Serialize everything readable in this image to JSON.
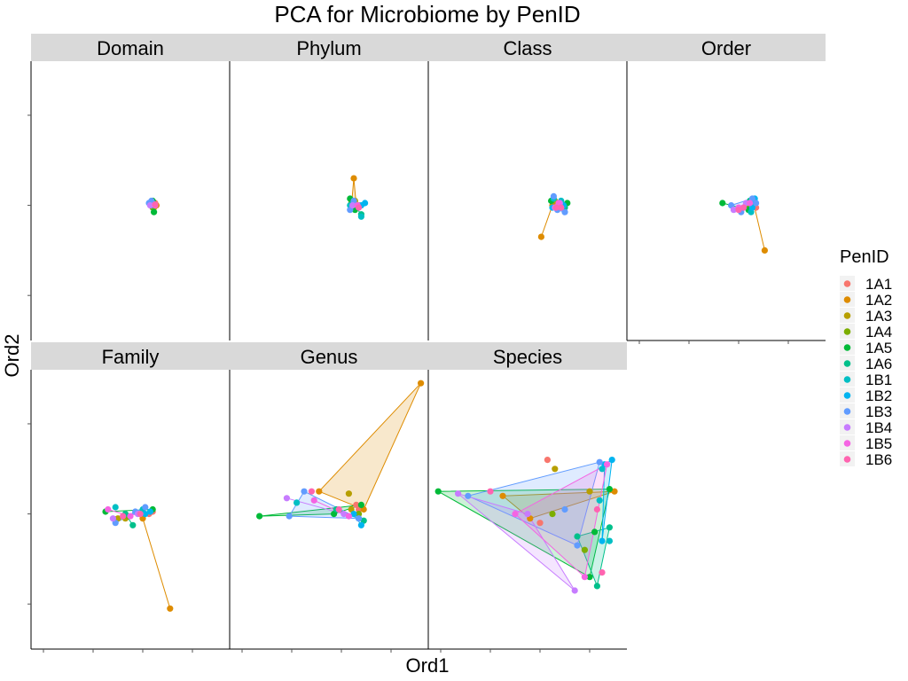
{
  "chart_data": {
    "type": "scatter",
    "title": "PCA for Microbiome by PenID",
    "xlabel": "Ord1",
    "ylabel": "Ord2",
    "legend": {
      "title": "PenID",
      "position": "right",
      "entries": [
        "1A1",
        "1A2",
        "1A3",
        "1A4",
        "1A5",
        "1A6",
        "1B1",
        "1B2",
        "1B3",
        "1B4",
        "1B5",
        "1B6"
      ]
    },
    "colors": {
      "1A1": "#F8766D",
      "1A2": "#DE8C00",
      "1A3": "#B79F00",
      "1A4": "#7CAE00",
      "1A5": "#00BA38",
      "1A6": "#00C08B",
      "1B1": "#00BFC4",
      "1B2": "#00B4F0",
      "1B3": "#619CFF",
      "1B4": "#C77CFF",
      "1B5": "#F564E3",
      "1B6": "#FF64B0"
    },
    "xlim": [
      0,
      8
    ],
    "ylim": [
      0,
      6.2
    ],
    "hulls_shown_for": [
      "1A2",
      "1A5",
      "1A6",
      "1B2",
      "1B3",
      "1B4",
      "1B5"
    ],
    "grid": false,
    "tick_labels_shown": false,
    "panels": [
      {
        "name": "Domain",
        "points": {
          "1A1": [
            [
              4.9,
              3.0
            ],
            [
              5.0,
              3.05
            ]
          ],
          "1A2": [
            [
              5.05,
              3.0
            ],
            [
              4.95,
              2.95
            ]
          ],
          "1A3": [
            [
              4.95,
              3.05
            ]
          ],
          "1A4": [
            [
              4.9,
              2.95
            ]
          ],
          "1A5": [
            [
              4.95,
              2.85
            ],
            [
              4.9,
              3.1
            ]
          ],
          "1A6": [
            [
              4.85,
              3.05
            ]
          ],
          "1B1": [
            [
              4.85,
              3.0
            ],
            [
              4.9,
              3.05
            ]
          ],
          "1B2": [
            [
              4.8,
              3.05
            ]
          ],
          "1B3": [
            [
              4.75,
              3.05
            ],
            [
              4.85,
              3.1
            ]
          ],
          "1B4": [
            [
              4.8,
              3.0
            ]
          ],
          "1B5": [
            [
              5.0,
              3.0
            ]
          ],
          "1B6": [
            [
              5.0,
              3.02
            ]
          ]
        }
      },
      {
        "name": "Phylum",
        "points": {
          "1A1": [
            [
              5.2,
              3.0
            ],
            [
              5.0,
              2.95
            ]
          ],
          "1A2": [
            [
              5.0,
              3.6
            ],
            [
              5.1,
              3.0
            ],
            [
              4.9,
              2.95
            ]
          ],
          "1A3": [
            [
              5.05,
              3.1
            ]
          ],
          "1A4": [
            [
              4.9,
              3.05
            ]
          ],
          "1A5": [
            [
              4.85,
              3.15
            ],
            [
              5.05,
              2.9
            ]
          ],
          "1A6": [
            [
              5.3,
              2.8
            ],
            [
              4.95,
              3.05
            ]
          ],
          "1B1": [
            [
              5.3,
              2.75
            ],
            [
              4.85,
              3.0
            ]
          ],
          "1B2": [
            [
              5.45,
              3.05
            ],
            [
              5.3,
              3.0
            ]
          ],
          "1B3": [
            [
              4.85,
              2.9
            ],
            [
              5.0,
              3.1
            ]
          ],
          "1B4": [
            [
              4.95,
              3.0
            ]
          ],
          "1B5": [
            [
              5.15,
              3.0
            ]
          ],
          "1B6": [
            [
              5.2,
              2.95
            ]
          ]
        }
      },
      {
        "name": "Class",
        "points": {
          "1A1": [
            [
              5.2,
              2.95
            ],
            [
              5.3,
              3.0
            ]
          ],
          "1A2": [
            [
              4.55,
              2.3
            ],
            [
              5.0,
              3.0
            ]
          ],
          "1A3": [
            [
              5.1,
              3.1
            ]
          ],
          "1A4": [
            [
              5.4,
              3.0
            ]
          ],
          "1A5": [
            [
              5.6,
              3.05
            ],
            [
              4.95,
              3.1
            ]
          ],
          "1A6": [
            [
              5.5,
              2.95
            ]
          ],
          "1B1": [
            [
              5.35,
              3.1
            ],
            [
              5.05,
              3.15
            ]
          ],
          "1B2": [
            [
              5.45,
              3.0
            ],
            [
              5.0,
              2.95
            ]
          ],
          "1B3": [
            [
              5.5,
              2.85
            ],
            [
              5.05,
              3.2
            ],
            [
              5.2,
              2.9
            ]
          ],
          "1B4": [
            [
              5.1,
              2.95
            ],
            [
              5.3,
              3.05
            ]
          ],
          "1B5": [
            [
              5.25,
              3.05
            ]
          ],
          "1B6": [
            [
              5.15,
              2.95
            ],
            [
              5.35,
              2.95
            ]
          ]
        }
      },
      {
        "name": "Order",
        "points": {
          "1A1": [
            [
              4.9,
              3.0
            ],
            [
              5.2,
              2.95
            ]
          ],
          "1A2": [
            [
              5.55,
              2.0
            ],
            [
              5.1,
              3.05
            ]
          ],
          "1A3": [
            [
              5.0,
              2.95
            ]
          ],
          "1A4": [
            [
              4.85,
              3.0
            ]
          ],
          "1A5": [
            [
              3.85,
              3.05
            ],
            [
              4.9,
              2.9
            ]
          ],
          "1A6": [
            [
              4.95,
              3.1
            ]
          ],
          "1B1": [
            [
              5.0,
              2.85
            ],
            [
              5.1,
              3.1
            ]
          ],
          "1B2": [
            [
              5.15,
              3.15
            ],
            [
              5.05,
              2.95
            ]
          ],
          "1B3": [
            [
              4.6,
              2.85
            ],
            [
              5.05,
              3.15
            ],
            [
              4.2,
              3.0
            ],
            [
              5.2,
              3.05
            ]
          ],
          "1B4": [
            [
              4.3,
              2.9
            ],
            [
              4.8,
              3.05
            ]
          ],
          "1B5": [
            [
              4.5,
              2.95
            ],
            [
              4.95,
              3.05
            ]
          ],
          "1B6": [
            [
              4.7,
              2.95
            ],
            [
              4.5,
              2.9
            ]
          ]
        }
      },
      {
        "name": "Family",
        "points": {
          "1A1": [
            [
              4.75,
              3.0
            ],
            [
              4.9,
              3.05
            ]
          ],
          "1A2": [
            [
              5.6,
              0.9
            ],
            [
              4.5,
              2.9
            ]
          ],
          "1A3": [
            [
              3.5,
              2.9
            ],
            [
              3.8,
              2.9
            ]
          ],
          "1A4": [
            [
              3.9,
              2.95
            ]
          ],
          "1A5": [
            [
              3.0,
              3.05
            ],
            [
              4.9,
              3.1
            ]
          ],
          "1A6": [
            [
              4.1,
              2.75
            ],
            [
              3.8,
              3.0
            ]
          ],
          "1B1": [
            [
              3.4,
              3.15
            ],
            [
              4.5,
              3.1
            ]
          ],
          "1B2": [
            [
              4.8,
              3.05
            ],
            [
              4.6,
              3.0
            ]
          ],
          "1B3": [
            [
              3.4,
              2.8
            ],
            [
              4.6,
              3.15
            ],
            [
              4.2,
              3.05
            ]
          ],
          "1B4": [
            [
              3.3,
              2.9
            ],
            [
              4.3,
              3.0
            ]
          ],
          "1B5": [
            [
              3.1,
              3.1
            ],
            [
              4.0,
              2.95
            ]
          ],
          "1B6": [
            [
              4.4,
              3.0
            ],
            [
              3.7,
              2.95
            ]
          ]
        }
      },
      {
        "name": "Genus",
        "points": {
          "1A1": [
            [
              5.1,
              3.2
            ],
            [
              5.2,
              3.1
            ]
          ],
          "1A2": [
            [
              7.7,
              5.9
            ],
            [
              3.6,
              3.5
            ],
            [
              5.4,
              3.1
            ]
          ],
          "1A3": [
            [
              4.8,
              3.45
            ],
            [
              4.9,
              3.1
            ]
          ],
          "1A4": [
            [
              5.2,
              3.0
            ]
          ],
          "1A5": [
            [
              1.2,
              2.95
            ],
            [
              5.3,
              3.2
            ],
            [
              4.2,
              3.0
            ]
          ],
          "1A6": [
            [
              4.3,
              3.1
            ],
            [
              5.4,
              2.85
            ]
          ],
          "1B1": [
            [
              2.7,
              3.25
            ],
            [
              5.2,
              2.9
            ]
          ],
          "1B2": [
            [
              5.3,
              2.75
            ],
            [
              5.0,
              3.0
            ]
          ],
          "1B3": [
            [
              3.0,
              3.5
            ],
            [
              2.4,
              2.95
            ],
            [
              5.2,
              2.9
            ]
          ],
          "1B4": [
            [
              2.3,
              3.35
            ],
            [
              4.6,
              3.0
            ]
          ],
          "1B5": [
            [
              3.4,
              3.3
            ],
            [
              4.8,
              2.95
            ]
          ],
          "1B6": [
            [
              3.3,
              3.5
            ],
            [
              4.4,
              3.1
            ]
          ]
        }
      },
      {
        "name": "Species",
        "points": {
          "1A1": [
            [
              4.8,
              4.2
            ],
            [
              4.5,
              2.8
            ]
          ],
          "1A2": [
            [
              7.5,
              3.5
            ],
            [
              4.1,
              2.9
            ],
            [
              3.0,
              3.4
            ]
          ],
          "1A3": [
            [
              5.1,
              4.0
            ],
            [
              6.5,
              3.5
            ]
          ],
          "1A4": [
            [
              6.3,
              2.2
            ],
            [
              5.0,
              3.0
            ]
          ],
          "1A5": [
            [
              0.4,
              3.5
            ],
            [
              7.3,
              3.55
            ],
            [
              6.5,
              1.6
            ],
            [
              6.7,
              2.6
            ]
          ],
          "1A6": [
            [
              6.8,
              1.4
            ],
            [
              7.3,
              2.7
            ],
            [
              6.0,
              2.5
            ]
          ],
          "1B1": [
            [
              7.0,
              4.0
            ],
            [
              7.3,
              2.4
            ],
            [
              6.9,
              3.3
            ]
          ],
          "1B2": [
            [
              7.4,
              4.2
            ],
            [
              7.1,
              4.1
            ],
            [
              7.0,
              2.4
            ]
          ],
          "1B3": [
            [
              6.9,
              4.15
            ],
            [
              6.0,
              2.3
            ],
            [
              5.5,
              3.1
            ],
            [
              1.6,
              3.4
            ]
          ],
          "1B4": [
            [
              5.9,
              1.3
            ],
            [
              1.2,
              3.45
            ],
            [
              4.0,
              3.0
            ]
          ],
          "1B5": [
            [
              7.2,
              4.1
            ],
            [
              6.3,
              1.6
            ],
            [
              3.5,
              3.0
            ]
          ],
          "1B6": [
            [
              7.0,
              1.7
            ],
            [
              6.8,
              3.1
            ],
            [
              2.5,
              3.5
            ]
          ]
        }
      }
    ]
  }
}
